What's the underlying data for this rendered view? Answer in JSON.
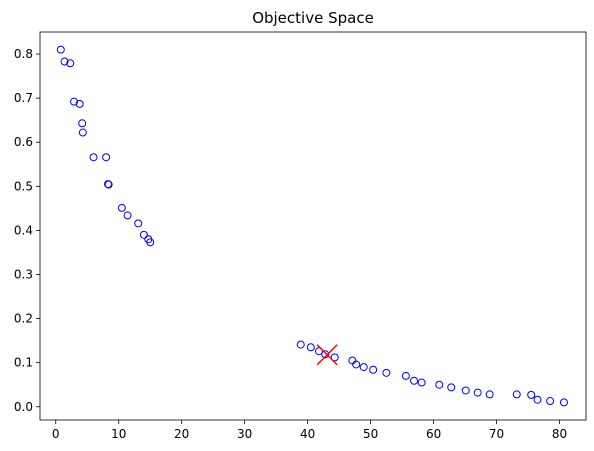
{
  "chart_data": {
    "type": "scatter",
    "title": "Objective Space",
    "xlabel": "",
    "ylabel": "",
    "xlim": [
      -2.5,
      84.2
    ],
    "ylim": [
      -0.03,
      0.85
    ],
    "xticks": [
      0,
      10,
      20,
      30,
      40,
      50,
      60,
      70,
      80
    ],
    "yticks": [
      0.0,
      0.1,
      0.2,
      0.3,
      0.4,
      0.5,
      0.6,
      0.7,
      0.8
    ],
    "xtick_labels": [
      "0",
      "10",
      "20",
      "30",
      "40",
      "50",
      "60",
      "70",
      "80"
    ],
    "ytick_labels": [
      "0.0",
      "0.1",
      "0.2",
      "0.3",
      "0.4",
      "0.5",
      "0.6",
      "0.7",
      "0.8"
    ],
    "grid": false,
    "series": [
      {
        "marker": "open-circle",
        "color": "#0000ff",
        "points": [
          [
            0.8,
            0.81
          ],
          [
            1.4,
            0.783
          ],
          [
            2.3,
            0.779
          ],
          [
            2.9,
            0.692
          ],
          [
            3.8,
            0.687
          ],
          [
            4.2,
            0.643
          ],
          [
            4.3,
            0.622
          ],
          [
            6.0,
            0.566
          ],
          [
            8.0,
            0.566
          ],
          [
            8.3,
            0.505
          ],
          [
            8.4,
            0.504
          ],
          [
            10.5,
            0.451
          ],
          [
            11.4,
            0.434
          ],
          [
            13.1,
            0.416
          ],
          [
            14.0,
            0.39
          ],
          [
            14.7,
            0.38
          ],
          [
            15.0,
            0.373
          ],
          [
            38.9,
            0.141
          ],
          [
            40.5,
            0.135
          ],
          [
            41.8,
            0.126
          ],
          [
            42.8,
            0.119
          ],
          [
            44.3,
            0.112
          ],
          [
            47.1,
            0.105
          ],
          [
            47.7,
            0.096
          ],
          [
            48.9,
            0.09
          ],
          [
            50.4,
            0.084
          ],
          [
            52.5,
            0.077
          ],
          [
            55.6,
            0.07
          ],
          [
            56.9,
            0.059
          ],
          [
            58.1,
            0.055
          ],
          [
            60.9,
            0.05
          ],
          [
            62.8,
            0.044
          ],
          [
            65.1,
            0.037
          ],
          [
            67.0,
            0.032
          ],
          [
            68.9,
            0.028
          ],
          [
            73.2,
            0.028
          ],
          [
            75.5,
            0.027
          ],
          [
            76.5,
            0.016
          ],
          [
            78.5,
            0.013
          ],
          [
            80.7,
            0.01
          ]
        ]
      }
    ],
    "highlight": {
      "marker": "x",
      "color": "#ff0000",
      "x": 43.1,
      "y": 0.118
    }
  }
}
